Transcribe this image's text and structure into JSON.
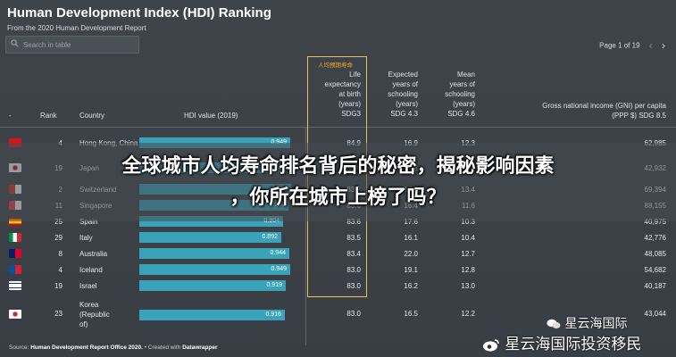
{
  "header": {
    "title": "Human Development Index (HDI) Ranking",
    "subtitle": "From the 2020 Human Development Report"
  },
  "search": {
    "placeholder": "Search in table"
  },
  "pager": {
    "label": "Page 1 of 19"
  },
  "annotation": "人均预期寿命",
  "columns": {
    "dash": "-",
    "rank": "Rank",
    "country": "Country",
    "hdi": "HDI value (2019)",
    "life_lines": [
      "Life",
      "expectancy",
      "at birth",
      "(years)",
      "SDG3"
    ],
    "expected_lines": [
      "Expected",
      "years of",
      "schooling",
      "(years)",
      "SDG 4.3"
    ],
    "mean_lines": [
      "Mean",
      "years of",
      "schooling",
      "(years)",
      "SDG 4.6"
    ],
    "gni_lines": [
      "Gross national income (GNI) per capita",
      "(PPP $) SDG 8.5"
    ]
  },
  "rows": [
    {
      "rank": "4",
      "country": "Hong Kong, China",
      "hdi": "0.949",
      "hdi_value": 0.949,
      "life": "84.9",
      "expected": "16.9",
      "mean": "12.3",
      "gni": "62,985",
      "flag": "hk"
    },
    {
      "rank": "19",
      "country": "Japan",
      "hdi": "0.919",
      "hdi_value": 0.919,
      "life": "84.6",
      "expected": "15.2",
      "mean": "12.9",
      "gni": "42,932",
      "flag": "jp"
    },
    {
      "rank": "2",
      "country": "Switzerland",
      "hdi": "0.955",
      "hdi_value": 0.955,
      "life": "83.8",
      "expected": "16.3",
      "mean": "13.4",
      "gni": "69,394",
      "flag": "ch"
    },
    {
      "rank": "11",
      "country": "Singapore",
      "hdi": "0.938",
      "hdi_value": 0.938,
      "life": "83.6",
      "expected": "16.4",
      "mean": "11.6",
      "gni": "88,155",
      "flag": "sg"
    },
    {
      "rank": "25",
      "country": "Spain",
      "hdi": "0.904",
      "hdi_value": 0.904,
      "life": "83.6",
      "expected": "17.6",
      "mean": "10.3",
      "gni": "40,975",
      "flag": "es"
    },
    {
      "rank": "29",
      "country": "Italy",
      "hdi": "0.892",
      "hdi_value": 0.892,
      "life": "83.5",
      "expected": "16.1",
      "mean": "10.4",
      "gni": "42,776",
      "flag": "it"
    },
    {
      "rank": "8",
      "country": "Australia",
      "hdi": "0.944",
      "hdi_value": 0.944,
      "life": "83.4",
      "expected": "22.0",
      "mean": "12.7",
      "gni": "48,085",
      "flag": "au"
    },
    {
      "rank": "4",
      "country": "Iceland",
      "hdi": "0.949",
      "hdi_value": 0.949,
      "life": "83.0",
      "expected": "19.1",
      "mean": "12.8",
      "gni": "54,682",
      "flag": "is"
    },
    {
      "rank": "19",
      "country": "Israel",
      "hdi": "0.919",
      "hdi_value": 0.919,
      "life": "83.0",
      "expected": "16.2",
      "mean": "13.0",
      "gni": "40,187",
      "flag": "il"
    },
    {
      "rank": "23",
      "country": "Korea (Republic of)",
      "country_lines": [
        "Korea",
        "(Republic",
        "of)"
      ],
      "hdi": "0.916",
      "hdi_value": 0.916,
      "life": "83.0",
      "expected": "16.5",
      "mean": "12.2",
      "gni": "43,044",
      "flag": "kr"
    }
  ],
  "footer": {
    "source": "Human Development Report Office 2020.",
    "sep": " • Created with ",
    "tool": "Datawrapper",
    "prefix": "Source: "
  },
  "overlay": {
    "headline_line1": "全球城市人均寿命排名背后的秘密，揭秘影响因素",
    "headline_line2": "，你所在城市上榜了吗？"
  },
  "watermark": {
    "small": "星云海国际",
    "large": "星云海国际投资移民"
  },
  "colors": {
    "bar": "#3aa3b9",
    "highlight": "#e3c35a",
    "annotation": "#f5a623",
    "background": "#3b4047"
  }
}
